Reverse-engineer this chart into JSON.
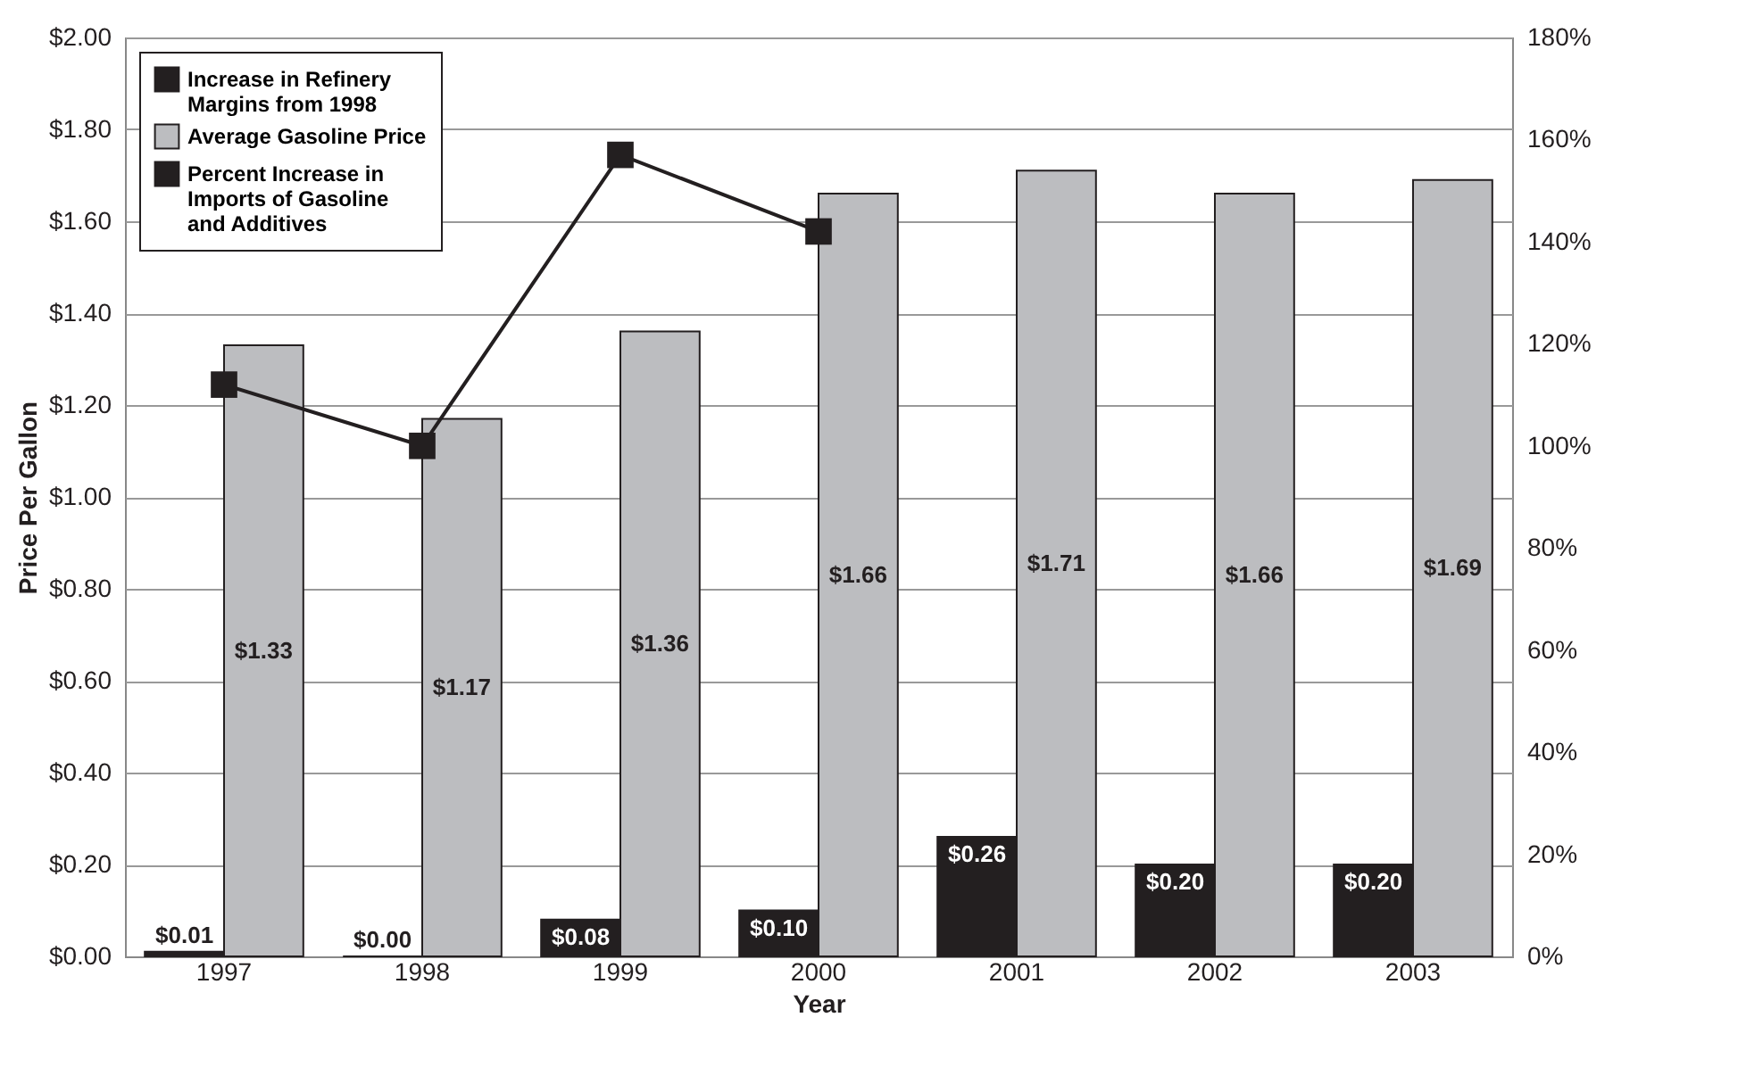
{
  "chart_data": {
    "type": "bar",
    "xlabel": "Year",
    "ylabel": "Price Per Gallon",
    "categories": [
      "1997",
      "1998",
      "1999",
      "2000",
      "2001",
      "2002",
      "2003"
    ],
    "series": [
      {
        "name": "Increase in Refinery Margins from 1998",
        "color": "#231f20",
        "values": [
          0.01,
          0.0,
          0.08,
          0.1,
          0.26,
          0.2,
          0.2
        ],
        "value_labels": [
          "$0.01",
          "$0.00",
          "$0.08",
          "$0.10",
          "$0.26",
          "$0.20",
          "$0.20"
        ]
      },
      {
        "name": "Average Gasoline Price",
        "color": "#bcbdc0",
        "values": [
          1.33,
          1.17,
          1.36,
          1.66,
          1.71,
          1.66,
          1.69
        ],
        "value_labels": [
          "$1.33",
          "$1.17",
          "$1.36",
          "$1.66",
          "$1.71",
          "$1.66",
          "$1.69"
        ]
      },
      {
        "name": "Percent Increase in Imports of Gasoline and Additives",
        "type": "line",
        "axis": "y2",
        "color": "#231f20",
        "marker": "square",
        "values": [
          112,
          100,
          157,
          142,
          null,
          null,
          null
        ]
      }
    ],
    "ylim": [
      0,
      2
    ],
    "yticks": [
      {
        "value": 0,
        "label": "$0.00"
      },
      {
        "value": 0.2,
        "label": "$0.20"
      },
      {
        "value": 0.4,
        "label": "$0.40"
      },
      {
        "value": 0.6,
        "label": "$0.60"
      },
      {
        "value": 0.8,
        "label": "$0.80"
      },
      {
        "value": 1,
        "label": "$1.00"
      },
      {
        "value": 1.2,
        "label": "$1.20"
      },
      {
        "value": 1.4,
        "label": "$1.40"
      },
      {
        "value": 1.6,
        "label": "$1.60"
      },
      {
        "value": 1.8,
        "label": "$1.80"
      },
      {
        "value": 2,
        "label": "$2.00"
      }
    ],
    "y2lim": [
      0,
      180
    ],
    "y2ticks": [
      {
        "value": 0,
        "label": "0%"
      },
      {
        "value": 20,
        "label": "20%"
      },
      {
        "value": 40,
        "label": "40%"
      },
      {
        "value": 60,
        "label": "60%"
      },
      {
        "value": 80,
        "label": "80%"
      },
      {
        "value": 100,
        "label": "100%"
      },
      {
        "value": 120,
        "label": "120%"
      },
      {
        "value": 140,
        "label": "140%"
      },
      {
        "value": 160,
        "label": "160%"
      },
      {
        "value": 180,
        "label": "180%"
      }
    ],
    "grid": "y",
    "legend": "top left"
  }
}
